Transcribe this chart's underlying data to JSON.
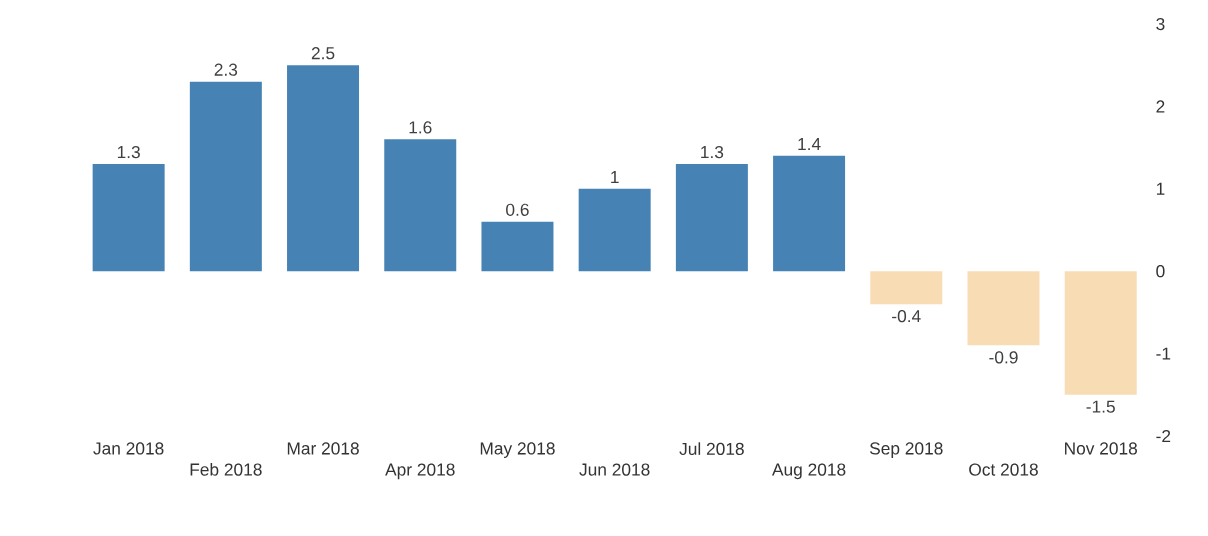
{
  "chart_data": {
    "type": "bar",
    "categories": [
      "Jan 2018",
      "Feb 2018",
      "Mar 2018",
      "Apr 2018",
      "May 2018",
      "Jun 2018",
      "Jul 2018",
      "Aug 2018",
      "Sep 2018",
      "Oct 2018",
      "Nov 2018"
    ],
    "values": [
      1.3,
      2.3,
      2.5,
      1.6,
      0.6,
      1,
      1.3,
      1.4,
      -0.4,
      -0.9,
      -1.5
    ],
    "colors": [
      "#4682b4",
      "#4682b4",
      "#4682b4",
      "#4682b4",
      "#4682b4",
      "#4682b4",
      "#4682b4",
      "#4682b4",
      "#f7dcb4",
      "#f7dcb4",
      "#f7dcb4"
    ],
    "ylim": [
      -2,
      3
    ],
    "yticks": [
      -2,
      -1,
      0,
      1,
      2,
      3
    ],
    "data_labels": true
  }
}
